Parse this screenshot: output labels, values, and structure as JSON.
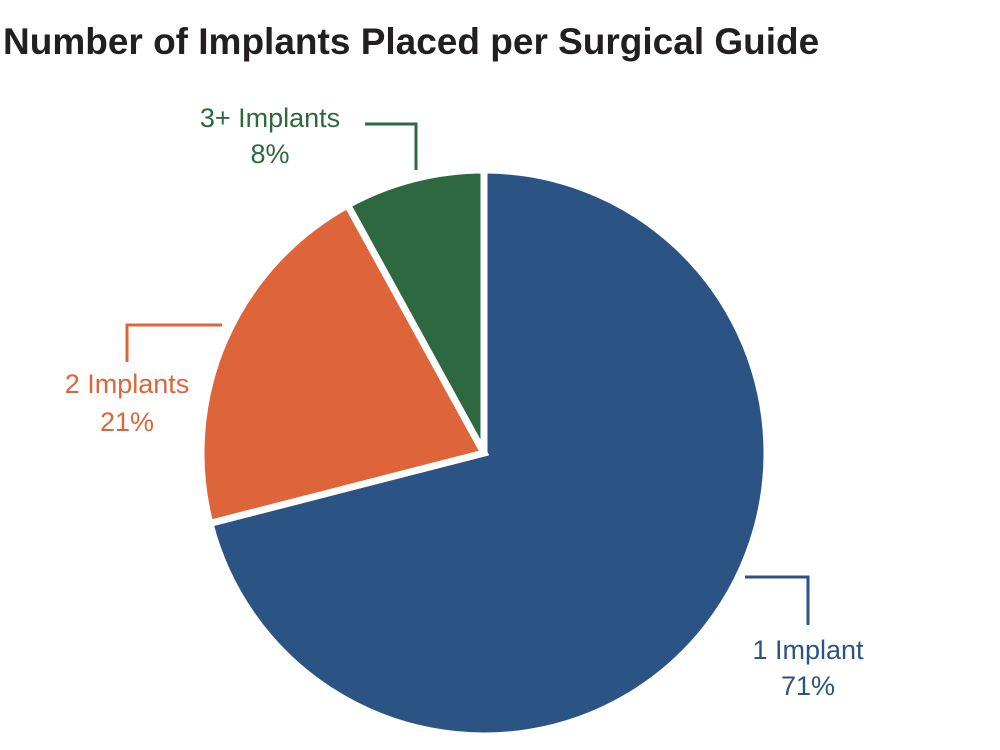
{
  "chart_data": {
    "type": "pie",
    "title": "Number of Implants Placed per Surgical Guide",
    "categories": [
      "1 Implant",
      "2 Implants",
      "3+ Implants"
    ],
    "values": [
      71,
      21,
      8
    ],
    "value_labels": [
      "71%",
      "21%",
      "8%"
    ],
    "colors": [
      "#2b5384",
      "#de643a",
      "#2d6840"
    ]
  }
}
